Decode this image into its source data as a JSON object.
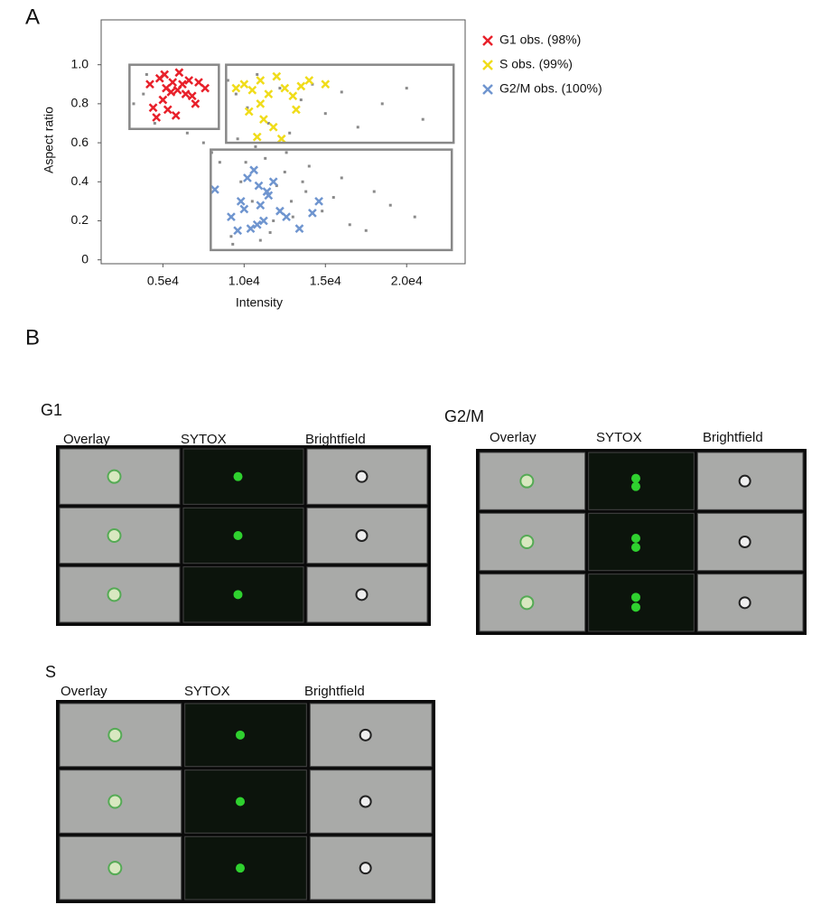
{
  "panel_labels": [
    "A",
    "B"
  ],
  "chart_data": {
    "type": "scatter",
    "xlabel": "Intensity",
    "ylabel": "Aspect ratio",
    "xlim": [
      1200,
      23600
    ],
    "ylim": [
      -0.02,
      1.23
    ],
    "xticks": [
      {
        "value": 5000,
        "label": "0.5e4"
      },
      {
        "value": 10000,
        "label": "1.0e4"
      },
      {
        "value": 15000,
        "label": "1.5e4"
      },
      {
        "value": 20000,
        "label": "2.0e4"
      }
    ],
    "yticks": [
      0,
      0.2,
      0.4,
      0.6,
      0.8,
      {
        "value": 1,
        "label": "1.0"
      }
    ],
    "legend": "upper right",
    "series": [
      {
        "color": "#8a8a8a",
        "x": [
          9000,
          9500,
          10200,
          10800,
          11500,
          12200,
          12800,
          13500,
          14200,
          15000,
          16000,
          17000,
          18500,
          20000,
          21000,
          9800,
          10500,
          11800,
          12500,
          13800,
          14800,
          16500,
          19000,
          8500,
          9200,
          11000,
          12000,
          13000,
          15500,
          17500,
          4000,
          4500,
          3200,
          3800,
          6500,
          7500,
          8000,
          9600,
          10700,
          11300,
          12600,
          14000,
          16000,
          18000,
          20500,
          9300,
          10100,
          11600,
          12900,
          13600
        ],
        "values": [
          0.92,
          0.85,
          0.78,
          0.95,
          0.7,
          0.88,
          0.65,
          0.82,
          0.9,
          0.75,
          0.86,
          0.68,
          0.8,
          0.88,
          0.72,
          0.4,
          0.3,
          0.2,
          0.45,
          0.35,
          0.25,
          0.18,
          0.28,
          0.5,
          0.12,
          0.1,
          0.38,
          0.22,
          0.32,
          0.15,
          0.95,
          0.7,
          0.8,
          0.85,
          0.65,
          0.6,
          0.55,
          0.62,
          0.58,
          0.52,
          0.55,
          0.48,
          0.42,
          0.35,
          0.22,
          0.08,
          0.5,
          0.14,
          0.3,
          0.4
        ]
      },
      {
        "name": "G1 obs. (98%)",
        "color": "#e8202a",
        "x": [
          4200,
          4800,
          5200,
          5600,
          6000,
          6400,
          5000,
          5500,
          6200,
          6800,
          7200,
          7600,
          4600,
          5300,
          5800,
          4400,
          6600,
          7000,
          5100,
          5900
        ],
        "values": [
          0.9,
          0.93,
          0.88,
          0.91,
          0.96,
          0.85,
          0.82,
          0.86,
          0.9,
          0.84,
          0.91,
          0.88,
          0.73,
          0.77,
          0.74,
          0.78,
          0.92,
          0.8,
          0.95,
          0.87
        ]
      },
      {
        "name": "S obs. (99%)",
        "color": "#f0dc1a",
        "x": [
          9500,
          10000,
          10500,
          11000,
          11500,
          12000,
          12500,
          13000,
          13500,
          14000,
          15000,
          10300,
          11200,
          11800,
          10800,
          12300,
          13200,
          11000
        ],
        "values": [
          0.88,
          0.9,
          0.87,
          0.92,
          0.85,
          0.94,
          0.88,
          0.84,
          0.89,
          0.92,
          0.9,
          0.76,
          0.72,
          0.68,
          0.63,
          0.62,
          0.77,
          0.8
        ]
      },
      {
        "name": "G2/M obs. (100%)",
        "color": "#6f95cf",
        "x": [
          8200,
          9200,
          9800,
          10200,
          10600,
          11000,
          11400,
          11800,
          12200,
          10400,
          10800,
          11200,
          9600,
          12600,
          13400,
          14200,
          14600,
          11500,
          10000,
          10900
        ],
        "values": [
          0.36,
          0.22,
          0.3,
          0.42,
          0.46,
          0.28,
          0.35,
          0.4,
          0.25,
          0.16,
          0.18,
          0.2,
          0.15,
          0.22,
          0.16,
          0.24,
          0.3,
          0.33,
          0.26,
          0.38
        ]
      }
    ],
    "gates": [
      {
        "x": [
          2944,
          8444
        ],
        "y": [
          0.671,
          1.0
        ]
      },
      {
        "x": [
          8889,
          22889
        ],
        "y": [
          0.6,
          1.0
        ]
      },
      {
        "x": [
          7944,
          22778
        ],
        "y": [
          0.05,
          0.565
        ]
      }
    ]
  },
  "image_grids": [
    {
      "label": "G1",
      "columns": [
        "Overlay",
        "SYTOX",
        "Brightfield"
      ]
    },
    {
      "label": "G2/M",
      "columns": [
        "Overlay",
        "SYTOX",
        "Brightfield"
      ]
    },
    {
      "label": "S",
      "columns": [
        "Overlay",
        "SYTOX",
        "Brightfield"
      ]
    }
  ]
}
